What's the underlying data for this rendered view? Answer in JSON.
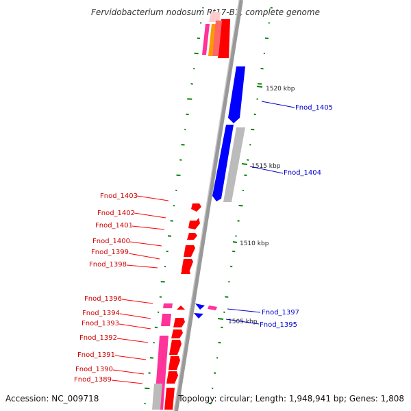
{
  "title": "Fervidobacterium nodosum Rt17-B1, complete genome",
  "footer": {
    "accession": "Accession: NC_009718",
    "topology": "Topology: circular; Length: 1,948,941 bp; Genes: 1,808"
  },
  "ticks": [
    "1520 kbp",
    "1515 kbp",
    "1510 kbp",
    "1505 kbp"
  ],
  "genes_left": [
    "Fnod_1403",
    "Fnod_1402",
    "Fnod_1401",
    "Fnod_1400",
    "Fnod_1399",
    "Fnod_1398",
    "Fnod_1396",
    "Fnod_1394",
    "Fnod_1393",
    "Fnod_1392",
    "Fnod_1391",
    "Fnod_1390",
    "Fnod_1389"
  ],
  "genes_right": [
    "Fnod_1405",
    "Fnod_1404",
    "Fnod_1397",
    "Fnod_1395"
  ],
  "colors": {
    "forward_gene": "#ff0000",
    "reverse_gene": "#0000ff",
    "backbone": "#999999",
    "gc_ticks": "#008000",
    "pink_feature": "#ff3399",
    "orange_feature": "#ff9900",
    "grey_feature": "#bbbbbb"
  }
}
